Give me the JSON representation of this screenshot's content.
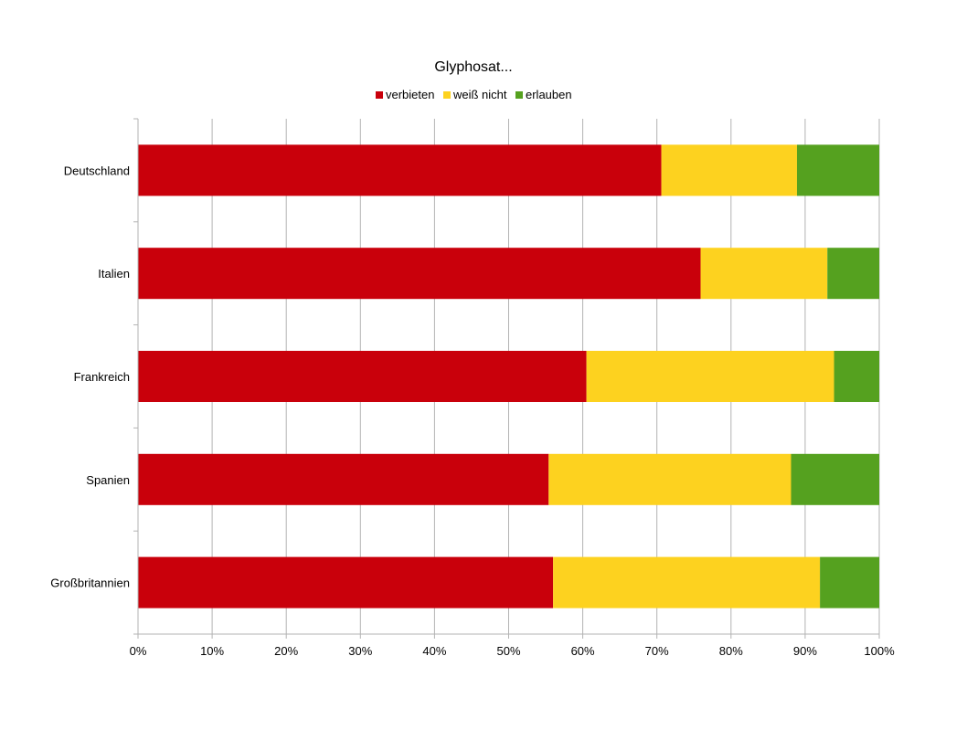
{
  "chart_data": {
    "type": "bar",
    "orientation": "horizontal",
    "stacked": "percent",
    "title": "Glyphosat...",
    "categories": [
      "Deutschland",
      "Italien",
      "Frankreich",
      "Spanien",
      "Großbritannien"
    ],
    "series": [
      {
        "name": "verbieten",
        "color": "#c9000b",
        "values": [
          70.6,
          75.9,
          60.5,
          55.4,
          56.0
        ]
      },
      {
        "name": "weiß nicht",
        "color": "#fdd21f",
        "values": [
          18.3,
          17.1,
          33.4,
          32.7,
          36.0
        ]
      },
      {
        "name": "erlauben",
        "color": "#55a11f",
        "values": [
          11.1,
          7.0,
          6.1,
          11.9,
          8.0
        ]
      }
    ],
    "x_ticks": [
      "0%",
      "10%",
      "20%",
      "30%",
      "40%",
      "50%",
      "60%",
      "70%",
      "80%",
      "90%",
      "100%"
    ],
    "xlim": [
      0,
      100
    ],
    "xlabel": "",
    "ylabel": "",
    "grid": "vertical",
    "legend_position": "top"
  }
}
